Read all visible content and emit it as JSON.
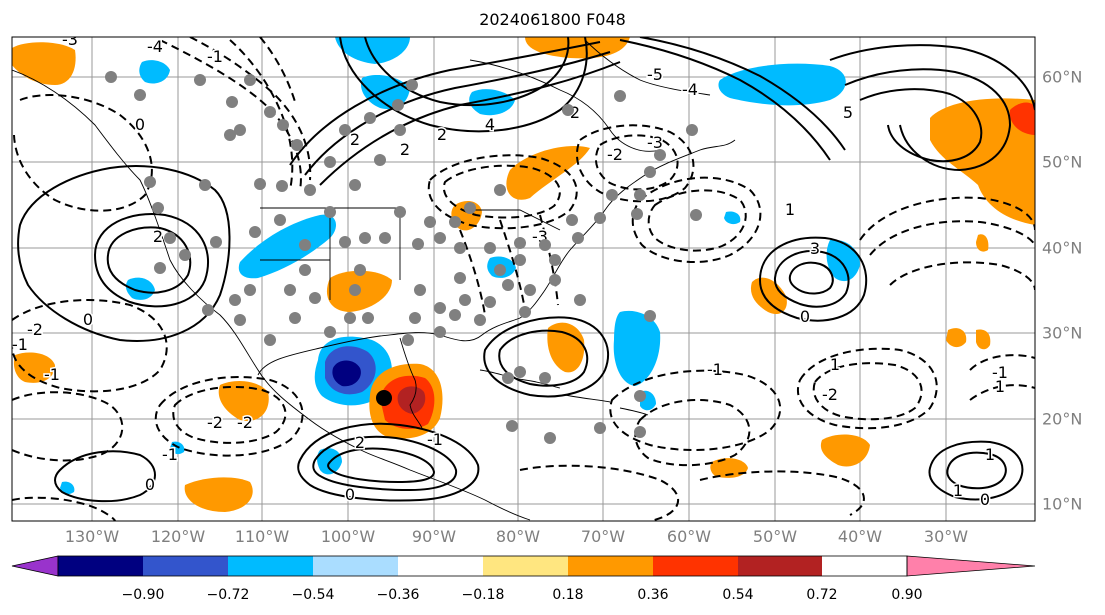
{
  "title": "2024061800 F048",
  "map": {
    "lon_range": [
      -140,
      25
    ],
    "lat_range": [
      8,
      65
    ],
    "longitude_labels": [
      "130°W",
      "120°W",
      "110°W",
      "100°W",
      "90°W",
      "80°W",
      "70°W",
      "60°W",
      "50°W",
      "40°W",
      "30°W"
    ],
    "latitude_labels": [
      "60°N",
      "50°N",
      "40°N",
      "30°N",
      "20°N",
      "10°N"
    ],
    "contour_labels": [
      "-4",
      "-1",
      "-3",
      "-5",
      "-4",
      "2",
      "2",
      "0",
      "2",
      "-2",
      "-3",
      "2",
      "-3",
      "1",
      "3",
      "0",
      "-1",
      "1",
      "2",
      "2",
      "-2",
      "-2",
      "0",
      "-1",
      "-1",
      "-2",
      "-1",
      "1",
      "0",
      "0",
      "-1",
      "4",
      "-4",
      "5",
      "1",
      "1",
      "0",
      "-1",
      "-2"
    ],
    "markers": {
      "color_filled": "#000000",
      "station_color": "#808080"
    }
  },
  "colorbar": {
    "ticks": [
      "−0.90",
      "−0.72",
      "−0.54",
      "−0.36",
      "−0.18",
      "0.18",
      "0.36",
      "0.54",
      "0.72",
      "0.90"
    ],
    "colors": [
      "#9933cc",
      "#000080",
      "#3355cc",
      "#00bbff",
      "#aaddff",
      "#ffffff",
      "#ffe680",
      "#ff9900",
      "#ff3300",
      "#b22222",
      "#ff80aa"
    ]
  }
}
